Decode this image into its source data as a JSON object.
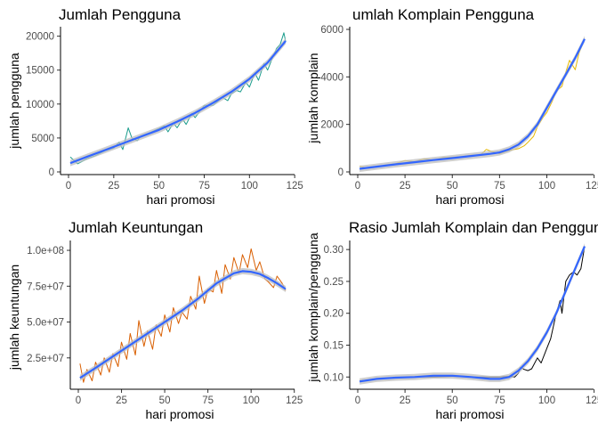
{
  "chart_data": [
    {
      "type": "line",
      "title": "Jumlah Pengguna",
      "xlabel": "hari promosi",
      "ylabel": "jumlah pengguna",
      "xlim": [
        0,
        120
      ],
      "ylim": [
        0,
        21000
      ],
      "xticks": [
        0,
        25,
        50,
        75,
        100,
        125
      ],
      "xtick_labels": [
        "0",
        "25",
        "50",
        "75",
        "100",
        "125"
      ],
      "yticks": [
        0,
        5000,
        10000,
        15000,
        20000
      ],
      "ytick_labels": [
        "0",
        "5000",
        "10000",
        "15000",
        "20000"
      ],
      "grid": false,
      "series": [
        {
          "role": "raw",
          "color": "#1a9c8c",
          "x": [
            1,
            5,
            10,
            15,
            20,
            25,
            28,
            30,
            33,
            35,
            38,
            40,
            45,
            50,
            53,
            55,
            58,
            60,
            63,
            65,
            68,
            70,
            75,
            80,
            85,
            88,
            90,
            93,
            95,
            98,
            100,
            103,
            105,
            108,
            110,
            113,
            115,
            117,
            119,
            120
          ],
          "y": [
            2200,
            1200,
            1900,
            2400,
            3100,
            3500,
            4400,
            3300,
            6500,
            5000,
            4600,
            5300,
            5800,
            6400,
            6800,
            5900,
            7200,
            6500,
            7800,
            7000,
            8600,
            8000,
            9800,
            9800,
            11000,
            10500,
            11500,
            12000,
            11800,
            13200,
            12500,
            14600,
            13500,
            16000,
            15000,
            17000,
            18200,
            18800,
            20500,
            19200
          ]
        },
        {
          "role": "smooth",
          "color": "#3366ff",
          "x": [
            1,
            10,
            20,
            30,
            40,
            50,
            60,
            70,
            80,
            90,
            100,
            110,
            120
          ],
          "y": [
            1300,
            2200,
            3200,
            4200,
            5200,
            6200,
            7400,
            8700,
            10200,
            11800,
            13700,
            16100,
            19300
          ]
        }
      ]
    },
    {
      "type": "line",
      "title": "umlah Komplain Pengguna",
      "xlabel": "hari promosi",
      "ylabel": "jumlah komplain",
      "xlim": [
        0,
        120
      ],
      "ylim": [
        0,
        6000
      ],
      "xticks": [
        0,
        25,
        50,
        75,
        100,
        125
      ],
      "xtick_labels": [
        "0",
        "25",
        "50",
        "75",
        "100",
        "125"
      ],
      "yticks": [
        0,
        2000,
        4000,
        6000
      ],
      "ytick_labels": [
        "0",
        "2000",
        "4000",
        "6000"
      ],
      "grid": false,
      "series": [
        {
          "role": "raw",
          "color": "#e6b800",
          "x": [
            1,
            5,
            10,
            15,
            20,
            25,
            30,
            35,
            40,
            45,
            50,
            55,
            60,
            65,
            68,
            70,
            73,
            75,
            78,
            80,
            85,
            88,
            90,
            93,
            95,
            98,
            100,
            103,
            105,
            108,
            110,
            112,
            115,
            117,
            120
          ],
          "y": [
            250,
            150,
            200,
            300,
            350,
            480,
            420,
            550,
            500,
            600,
            620,
            640,
            700,
            720,
            950,
            880,
            820,
            760,
            850,
            900,
            980,
            1100,
            1250,
            1500,
            1900,
            2300,
            2500,
            3000,
            3400,
            3600,
            4200,
            4700,
            4300,
            5000,
            5600
          ]
        },
        {
          "role": "smooth",
          "color": "#3366ff",
          "x": [
            1,
            10,
            20,
            30,
            40,
            50,
            60,
            70,
            75,
            80,
            85,
            90,
            95,
            100,
            105,
            110,
            115,
            120
          ],
          "y": [
            130,
            220,
            320,
            410,
            500,
            580,
            670,
            760,
            820,
            950,
            1150,
            1500,
            2000,
            2700,
            3400,
            4100,
            4800,
            5600
          ]
        }
      ]
    },
    {
      "type": "line",
      "title": "Jumlah Keuntungan",
      "xlabel": "hari promosi",
      "ylabel": "jumlah keuntungan",
      "xlim": [
        0,
        120
      ],
      "ylim": [
        5000000,
        105000000
      ],
      "xticks": [
        0,
        25,
        50,
        75,
        100,
        125
      ],
      "xtick_labels": [
        "0",
        "25",
        "50",
        "75",
        "100",
        "125"
      ],
      "yticks": [
        25000000,
        50000000,
        75000000,
        100000000
      ],
      "ytick_labels": [
        "2.5e+07",
        "5.0e+07",
        "7.5e+07",
        "1.0e+08"
      ],
      "grid": false,
      "series": [
        {
          "role": "raw",
          "color": "#d95f02",
          "x": [
            1,
            3,
            5,
            8,
            10,
            13,
            15,
            18,
            20,
            23,
            25,
            28,
            30,
            33,
            35,
            38,
            40,
            43,
            45,
            48,
            50,
            53,
            55,
            58,
            60,
            63,
            65,
            68,
            70,
            73,
            75,
            78,
            80,
            83,
            85,
            88,
            90,
            93,
            95,
            98,
            100,
            103,
            105,
            108,
            110,
            113,
            115,
            118,
            120
          ],
          "y": [
            21000000,
            8000000,
            17000000,
            9000000,
            22000000,
            13000000,
            25000000,
            15000000,
            28000000,
            19000000,
            36000000,
            24000000,
            42000000,
            27000000,
            51000000,
            33000000,
            44000000,
            31000000,
            48000000,
            40000000,
            55000000,
            43000000,
            60000000,
            49000000,
            57000000,
            52000000,
            68000000,
            59000000,
            82000000,
            63000000,
            73000000,
            71000000,
            86000000,
            70000000,
            90000000,
            80000000,
            95000000,
            84000000,
            97000000,
            88000000,
            101000000,
            86000000,
            92000000,
            80000000,
            78000000,
            74000000,
            82000000,
            77000000,
            72000000
          ]
        },
        {
          "role": "smooth",
          "color": "#3366ff",
          "x": [
            1,
            10,
            20,
            30,
            40,
            50,
            60,
            70,
            80,
            90,
            95,
            100,
            105,
            110,
            115,
            120
          ],
          "y": [
            11000000,
            18000000,
            26000000,
            34000000,
            42000000,
            50000000,
            58000000,
            67000000,
            77000000,
            84000000,
            85500000,
            85000000,
            83500000,
            80500000,
            77000000,
            73000000
          ]
        }
      ]
    },
    {
      "type": "line",
      "title": "Rasio Jumlah Komplain dan Pengguna",
      "xlabel": "hari promosi",
      "ylabel": "jumlah komplain/pengguna",
      "xlim": [
        0,
        120
      ],
      "ylim": [
        0.085,
        0.31
      ],
      "xticks": [
        0,
        25,
        50,
        75,
        100,
        125
      ],
      "xtick_labels": [
        "0",
        "25",
        "50",
        "75",
        "100",
        "125"
      ],
      "yticks": [
        0.1,
        0.15,
        0.2,
        0.25,
        0.3
      ],
      "ytick_labels": [
        "0.10",
        "0.15",
        "0.20",
        "0.25",
        "0.30"
      ],
      "grid": false,
      "series": [
        {
          "role": "raw",
          "color": "#000000",
          "x": [
            1,
            5,
            10,
            20,
            30,
            40,
            50,
            60,
            70,
            75,
            80,
            83,
            85,
            86,
            88,
            90,
            92,
            95,
            97,
            100,
            102,
            105,
            107,
            108,
            110,
            112,
            114,
            116,
            118,
            120
          ],
          "y": [
            0.094,
            0.095,
            0.097,
            0.099,
            0.1,
            0.1,
            0.101,
            0.1,
            0.1,
            0.1,
            0.101,
            0.1,
            0.106,
            0.115,
            0.112,
            0.11,
            0.113,
            0.13,
            0.122,
            0.145,
            0.16,
            0.2,
            0.22,
            0.2,
            0.25,
            0.26,
            0.265,
            0.26,
            0.27,
            0.305
          ]
        },
        {
          "role": "smooth",
          "color": "#3366ff",
          "x": [
            1,
            10,
            20,
            30,
            40,
            50,
            60,
            70,
            75,
            80,
            85,
            90,
            95,
            100,
            105,
            110,
            115,
            120
          ],
          "y": [
            0.093,
            0.097,
            0.099,
            0.1,
            0.102,
            0.102,
            0.1,
            0.097,
            0.097,
            0.1,
            0.11,
            0.125,
            0.145,
            0.17,
            0.2,
            0.235,
            0.27,
            0.305
          ]
        }
      ]
    }
  ]
}
